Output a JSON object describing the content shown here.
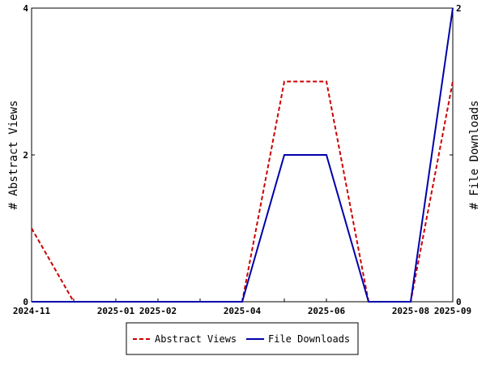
{
  "chart_data": {
    "type": "line",
    "x": [
      "2024-11",
      "2024-12",
      "2025-01",
      "2025-02",
      "2025-03",
      "2025-04",
      "2025-05",
      "2025-06",
      "2025-07",
      "2025-08",
      "2025-09"
    ],
    "x_tick_labels": [
      "2024-11",
      "2025-01",
      "2025-02",
      "2025-04",
      "2025-06",
      "2025-08",
      "2025-09"
    ],
    "series": [
      {
        "name": "Abstract Views",
        "axis": "left",
        "values": [
          1,
          0,
          0,
          0,
          0,
          0,
          3,
          3,
          0,
          0,
          3
        ],
        "color": "#cc0000",
        "style": "dashed"
      },
      {
        "name": "File Downloads",
        "axis": "right",
        "values": [
          0,
          0,
          0,
          0,
          0,
          0,
          1,
          1,
          0,
          0,
          2
        ],
        "color": "#0000aa",
        "style": "solid"
      }
    ],
    "ylabel_left": "# Abstract Views",
    "ylabel_right": "# File Downloads",
    "ylim_left": [
      0,
      4
    ],
    "ylim_right": [
      0,
      2
    ],
    "yticks_left": [
      "0",
      "2",
      "4"
    ],
    "yticks_right": [
      "0",
      "1",
      "2"
    ],
    "legend_position": "bottom",
    "grid": false
  }
}
